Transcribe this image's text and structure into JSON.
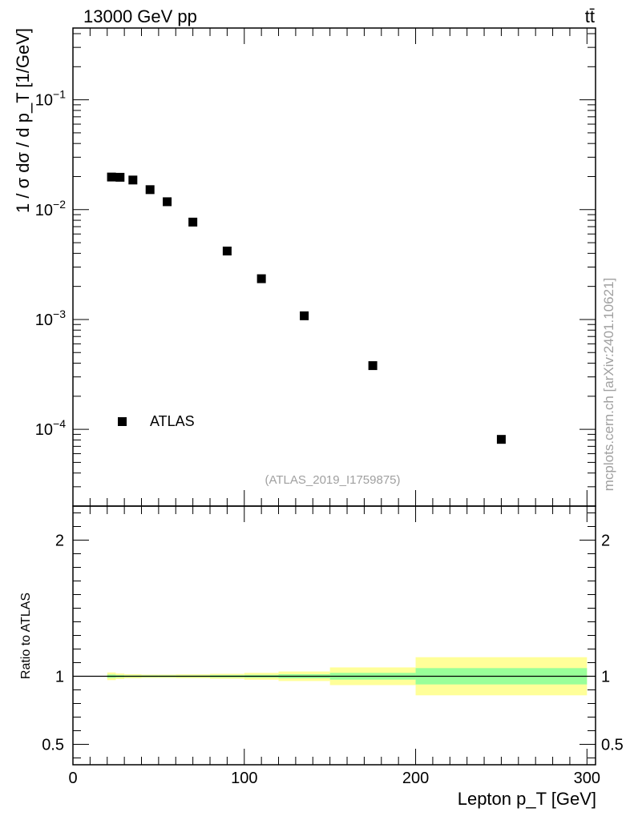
{
  "header": {
    "energy_label": "13000 GeV pp",
    "process_label": "tt̄",
    "watermark": "mcplots.cern.ch [arXiv:2401.10621]",
    "analysis_id": "(ATLAS_2019_I1759875)"
  },
  "chart_data": [
    {
      "type": "scatter",
      "panel": "main",
      "title": "",
      "xlabel": "Lepton p_T [GeV]",
      "ylabel": "1 / σ dσ / d p_T [1/GeV]",
      "yscale": "log",
      "xlim": [
        0,
        305
      ],
      "ylim": [
        2e-05,
        0.45
      ],
      "y_tick_labels": [
        "10^-4",
        "10^-3",
        "10^-2",
        "10^-1"
      ],
      "legend": {
        "entries": [
          "ATLAS"
        ],
        "placement": "bottom-left"
      },
      "series": [
        {
          "name": "ATLAS",
          "marker": "square",
          "color": "#000000",
          "x": [
            22.5,
            27.5,
            35,
            45,
            55,
            70,
            90,
            110,
            135,
            175,
            250
          ],
          "y": [
            0.0198,
            0.0197,
            0.0186,
            0.0152,
            0.0118,
            0.0077,
            0.0042,
            0.00235,
            0.00108,
            0.00038,
            8.1e-05
          ]
        }
      ]
    },
    {
      "type": "area",
      "panel": "ratio",
      "xlabel": "Lepton p_T [GeV]",
      "ylabel": "Ratio to ATLAS",
      "xlim": [
        0,
        305
      ],
      "ylim": [
        0.35,
        2.25
      ],
      "x_ticks": [
        0,
        100,
        200,
        300
      ],
      "x_tick_labels": [
        "0",
        "100",
        "200",
        "300"
      ],
      "y_ticks": [
        0.5,
        1,
        2
      ],
      "y_tick_labels": [
        "0.5",
        "1",
        "2"
      ],
      "reference_line": 1,
      "bins": [
        {
          "lo": 20,
          "hi": 25,
          "stat": 0.012,
          "total": 0.028
        },
        {
          "lo": 25,
          "hi": 30,
          "stat": 0.008,
          "total": 0.02
        },
        {
          "lo": 30,
          "hi": 40,
          "stat": 0.006,
          "total": 0.015
        },
        {
          "lo": 40,
          "hi": 50,
          "stat": 0.006,
          "total": 0.012
        },
        {
          "lo": 50,
          "hi": 60,
          "stat": 0.006,
          "total": 0.012
        },
        {
          "lo": 60,
          "hi": 80,
          "stat": 0.006,
          "total": 0.014
        },
        {
          "lo": 80,
          "hi": 100,
          "stat": 0.008,
          "total": 0.018
        },
        {
          "lo": 100,
          "hi": 120,
          "stat": 0.01,
          "total": 0.025
        },
        {
          "lo": 120,
          "hi": 150,
          "stat": 0.015,
          "total": 0.035
        },
        {
          "lo": 150,
          "hi": 200,
          "stat": 0.025,
          "total": 0.065
        },
        {
          "lo": 200,
          "hi": 300,
          "stat": 0.06,
          "total": 0.14
        }
      ],
      "colors": {
        "stat": "#99ff99",
        "total": "#ffff99"
      }
    }
  ]
}
